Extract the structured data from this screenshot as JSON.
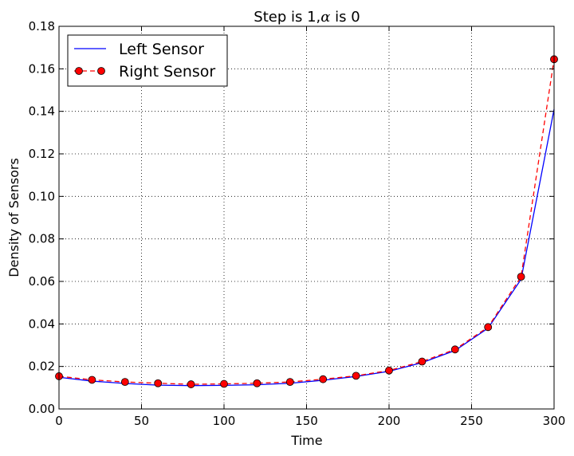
{
  "chart_data": {
    "type": "line",
    "title": "Step is 1,",
    "title_symbol": "α",
    "title_suffix": " is 0",
    "xlabel": "Time",
    "ylabel": "Density of Sensors",
    "xlim": [
      0,
      300
    ],
    "ylim": [
      0,
      0.18
    ],
    "xticks": [
      "0",
      "50",
      "100",
      "150",
      "200",
      "250",
      "300"
    ],
    "yticks": [
      "0.00",
      "0.02",
      "0.04",
      "0.06",
      "0.08",
      "0.10",
      "0.12",
      "0.14",
      "0.16",
      "0.18"
    ],
    "grid": true,
    "legend_position": "top-left",
    "x": [
      0,
      20,
      40,
      60,
      80,
      100,
      120,
      140,
      160,
      180,
      200,
      220,
      240,
      260,
      280,
      300
    ],
    "series": [
      {
        "name": "Left Sensor",
        "color": "#0000ff",
        "style": "solid",
        "marker": "none",
        "values": [
          0.0149,
          0.0131,
          0.012,
          0.0112,
          0.011,
          0.0111,
          0.0114,
          0.0121,
          0.0135,
          0.0153,
          0.0177,
          0.0218,
          0.0275,
          0.038,
          0.061,
          0.141
        ]
      },
      {
        "name": "Right Sensor",
        "color": "#ff0000",
        "style": "dashed",
        "marker": "circle",
        "values": [
          0.0154,
          0.0137,
          0.0127,
          0.0121,
          0.0116,
          0.0118,
          0.0121,
          0.0127,
          0.014,
          0.0156,
          0.0181,
          0.0223,
          0.028,
          0.0385,
          0.0622,
          0.1645
        ]
      }
    ]
  }
}
